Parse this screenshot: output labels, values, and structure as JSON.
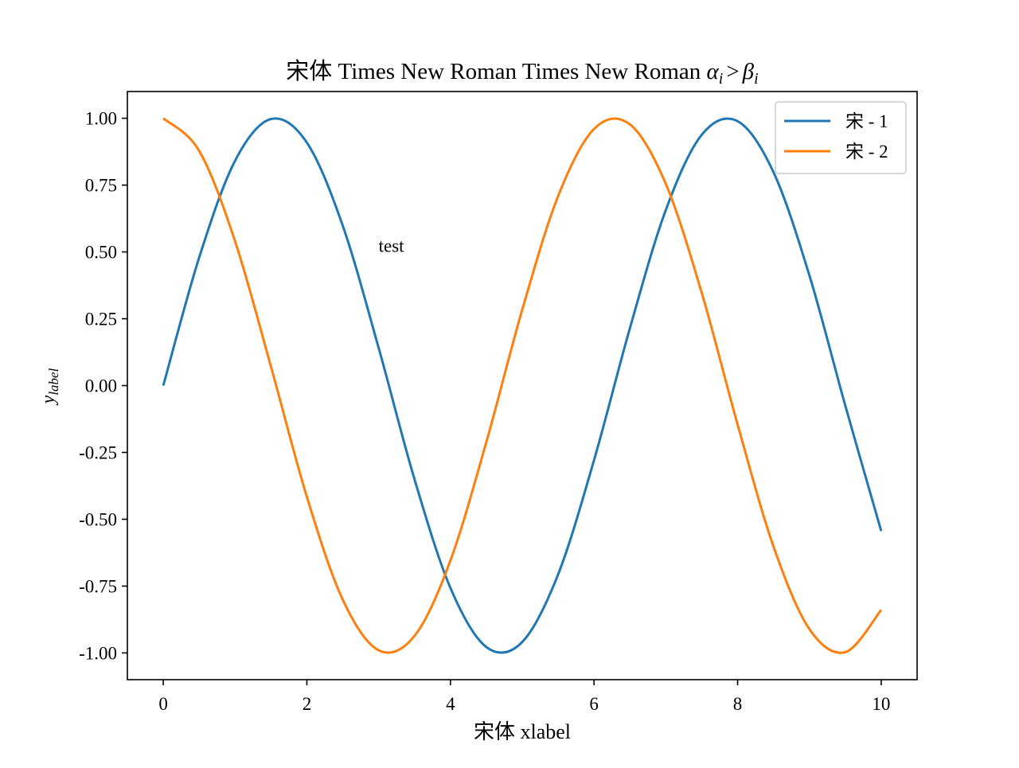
{
  "chart_data": {
    "type": "line",
    "title": "宋体 Times New Roman Times New Roman αᵢ > βᵢ",
    "title_parts": {
      "prefix": "宋体 Times New Roman Times New Roman ",
      "alpha": "α",
      "sub1": "i",
      "gt": ">",
      "beta": "β",
      "sub2": "i"
    },
    "xlabel": "宋体 xlabel",
    "ylabel": "y",
    "ylabel_subscript": "label",
    "xlim": [
      -0.5,
      10.5
    ],
    "ylim": [
      -1.1,
      1.1
    ],
    "xticks": [
      0,
      2,
      4,
      6,
      8,
      10
    ],
    "xtick_labels": [
      "0",
      "2",
      "4",
      "6",
      "8",
      "10"
    ],
    "yticks": [
      1.0,
      0.75,
      0.5,
      0.25,
      0.0,
      -0.25,
      -0.5,
      -0.75,
      -1.0
    ],
    "ytick_labels": [
      "1.00",
      "0.75",
      "0.50",
      "0.25",
      "0.00",
      "-0.25",
      "-0.50",
      "-0.75",
      "-1.00"
    ],
    "grid": false,
    "legend_position": "top-right",
    "series": [
      {
        "name": "宋 - 1",
        "color": "#1f77b4",
        "x": [
          0,
          0.5,
          1,
          1.5,
          2,
          2.5,
          3,
          3.5,
          4,
          4.5,
          5,
          5.5,
          6,
          6.5,
          7,
          7.5,
          8,
          8.5,
          9,
          9.5,
          10
        ],
        "y": [
          0.0,
          0.479,
          0.841,
          0.997,
          0.909,
          0.598,
          0.141,
          -0.351,
          -0.757,
          -0.978,
          -0.959,
          -0.706,
          -0.279,
          0.215,
          0.657,
          0.938,
          0.989,
          0.798,
          0.412,
          -0.075,
          -0.544
        ]
      },
      {
        "name": "宋 - 2",
        "color": "#ff7f0e",
        "x": [
          0,
          0.5,
          1,
          1.5,
          2,
          2.5,
          3,
          3.5,
          4,
          4.5,
          5,
          5.5,
          6,
          6.5,
          7,
          7.5,
          8,
          8.5,
          9,
          9.5,
          10
        ],
        "y": [
          1.0,
          0.878,
          0.54,
          0.071,
          -0.416,
          -0.801,
          -0.99,
          -0.936,
          -0.654,
          -0.211,
          0.284,
          0.709,
          0.96,
          0.977,
          0.754,
          0.347,
          -0.146,
          -0.602,
          -0.911,
          -0.997,
          -0.839
        ]
      }
    ],
    "annotations": [
      {
        "text": "test",
        "x": 3.0,
        "y": 0.5
      }
    ]
  }
}
